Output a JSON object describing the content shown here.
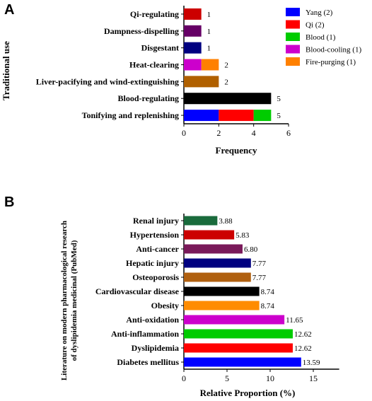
{
  "panels": [
    {
      "letter": "A"
    },
    {
      "letter": "B"
    }
  ],
  "chart_data": [
    {
      "type": "bar",
      "orientation": "horizontal",
      "stacked": true,
      "categories": [
        "Qi-regulating",
        "Dampness-dispelling",
        "Disgestant",
        "Heat-clearing",
        "Liver-pacifying and wind-extinguishing",
        "Blood-regulating",
        "Tonifying and replenishing"
      ],
      "series": [
        {
          "name": "Yang (2)",
          "color": "#0000ff",
          "values": [
            0,
            0,
            0,
            0,
            0,
            0,
            2
          ]
        },
        {
          "name": "Qi (2)",
          "color": "#ff0000",
          "values": [
            0,
            0,
            0,
            0,
            0,
            0,
            2
          ]
        },
        {
          "name": "Blood (1)",
          "color": "#00cc00",
          "values": [
            0,
            0,
            0,
            0,
            0,
            0,
            1
          ]
        },
        {
          "name": "Blood-cooling (1)",
          "color": "#cc00cc",
          "values": [
            0,
            0,
            0,
            1,
            0,
            0,
            0
          ]
        },
        {
          "name": "Fire-purging (1)",
          "color": "#ff8000",
          "values": [
            0,
            0,
            0,
            1,
            0,
            0,
            0
          ]
        },
        {
          "color": "#cc0000",
          "values": [
            1,
            0,
            0,
            0,
            0,
            0,
            0
          ]
        },
        {
          "color": "#660066",
          "values": [
            0,
            1,
            0,
            0,
            0,
            0,
            0
          ]
        },
        {
          "color": "#000080",
          "values": [
            0,
            0,
            1,
            0,
            0,
            0,
            0
          ]
        },
        {
          "color": "#b06000",
          "values": [
            0,
            0,
            0,
            0,
            2,
            0,
            0
          ]
        },
        {
          "color": "#000000",
          "values": [
            0,
            0,
            0,
            0,
            0,
            5,
            0
          ]
        }
      ],
      "totals": [
        "1",
        "1",
        "1",
        "2",
        "2",
        "5",
        "5"
      ],
      "xlabel": "Frequency",
      "ylabel": "Traditional use",
      "xlim": [
        0,
        6
      ],
      "xticks": [
        "0",
        "2",
        "4",
        "6"
      ],
      "grid": false,
      "legend_position": "top-right"
    },
    {
      "type": "bar",
      "orientation": "horizontal",
      "categories": [
        "Renal injury",
        "Hypertension",
        "Anti-cancer",
        "Hepatic injury",
        "Osteoporosis",
        "Cardiovascular disease",
        "Obesity",
        "Anti-oxidation",
        "Anti-inflammation",
        "Dyslipidemia",
        "Diabetes mellitus"
      ],
      "values": [
        3.88,
        5.83,
        6.8,
        7.77,
        7.77,
        8.74,
        8.74,
        11.65,
        12.62,
        12.62,
        13.59
      ],
      "value_labels": [
        "3.88",
        "5.83",
        "6.80",
        "7.77",
        "7.77",
        "8.74",
        "8.74",
        "11.65",
        "12.62",
        "12.62",
        "13.59"
      ],
      "colors": [
        "#1a6b3c",
        "#cc0000",
        "#7a1a5a",
        "#000080",
        "#b06010",
        "#000000",
        "#ff8c00",
        "#cc00cc",
        "#00cc00",
        "#ff0000",
        "#0000ff"
      ],
      "xlabel": "Relative Proportion (%)",
      "ylabel": "Literature on modern pharmacological research of dyslipidemia medicinal (PubMed)",
      "ylabel_lines": [
        "Literature on modern pharmacological research",
        "of dyslipidemia medicinal (PubMed)"
      ],
      "xlim": [
        0,
        18
      ],
      "xticks": [
        "0",
        "5",
        "10",
        "15"
      ],
      "grid": false
    }
  ]
}
